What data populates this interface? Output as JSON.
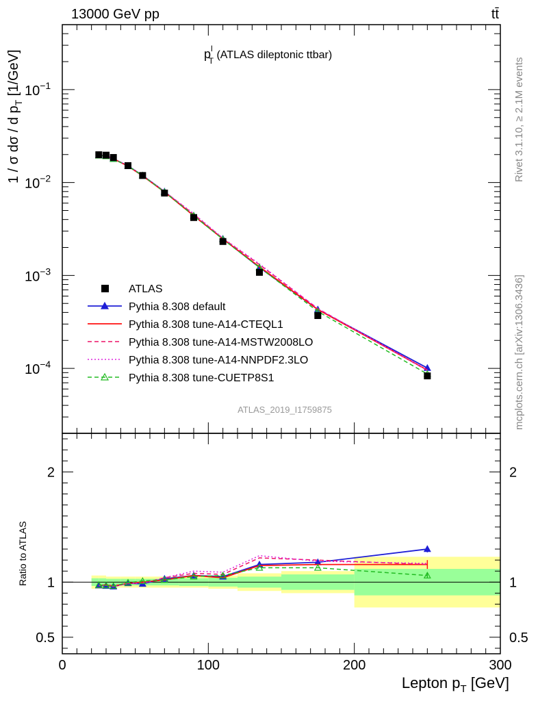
{
  "header": {
    "energy_label": "13000 GeV pp",
    "process_label": "tt̄",
    "side_rivet": "Rivet 3.1.10, ≥ 2.1M events",
    "side_mcplots": "mcplots.cern.ch [arXiv:1306.3436]",
    "analysis_id": "ATLAS_2019_I1759875"
  },
  "chart_data": [
    {
      "type": "line",
      "title_main": "p",
      "title_sup": "l",
      "title_sub": "T",
      "title_rest": " (ATLAS dileptonic ttbar)",
      "ylabel_prefix": "1 / σ  dσ / d p",
      "ylabel_sub": "T",
      "ylabel_unit": " [1/GeV]",
      "yscale": "log",
      "ylim": [
        2e-05,
        0.5
      ],
      "xlim": [
        0,
        300
      ],
      "ytick_labels": [
        {
          "value": 0.1,
          "base": "10",
          "exp": "−1"
        },
        {
          "value": 0.01,
          "base": "10",
          "exp": "−2"
        },
        {
          "value": 0.001,
          "base": "10",
          "exp": "−3"
        },
        {
          "value": 0.0001,
          "base": "10",
          "exp": "−4"
        }
      ],
      "x": [
        25,
        30,
        35,
        45,
        55,
        70,
        90,
        110,
        135,
        175,
        250
      ],
      "bin_edges": [
        20,
        25,
        30,
        40,
        50,
        60,
        80,
        100,
        120,
        150,
        200,
        300
      ],
      "legend_position": "middle-left",
      "data": {
        "name": "ATLAS",
        "values": [
          0.0199,
          0.0197,
          0.0186,
          0.0152,
          0.0119,
          0.0077,
          0.0042,
          0.00232,
          0.00108,
          0.00037,
          8.3e-05
        ]
      },
      "series": [
        {
          "name": "Pythia 8.308 default",
          "color": "#1f1fd6",
          "style": "solid",
          "marker": "triangle-filled",
          "values": [
            0.0197,
            0.0194,
            0.018,
            0.0151,
            0.0119,
            0.008,
            0.0044,
            0.00248,
            0.00122,
            0.00043,
            0.000101
          ]
        },
        {
          "name": "Pythia 8.308 tune-A14-CTEQL1",
          "color": "#ff1111",
          "style": "solid",
          "marker": "none",
          "values": [
            0.0196,
            0.0194,
            0.018,
            0.015,
            0.0118,
            0.0079,
            0.0044,
            0.00247,
            0.00124,
            0.00043,
            9.6e-05
          ]
        },
        {
          "name": "Pythia 8.308 tune-A14-MSTW2008LO",
          "color": "#ee1166",
          "style": "dashed",
          "marker": "none",
          "values": [
            0.0196,
            0.0193,
            0.018,
            0.015,
            0.0118,
            0.008,
            0.00455,
            0.0025,
            0.00131,
            0.00044,
            9.5e-05
          ]
        },
        {
          "name": "Pythia 8.308 tune-A14-NNPDF2.3LO",
          "color": "#dd22dd",
          "style": "dotted",
          "marker": "none",
          "values": [
            0.0196,
            0.0194,
            0.018,
            0.0151,
            0.0119,
            0.008,
            0.00462,
            0.00252,
            0.00133,
            0.00044,
            9.6e-05
          ]
        },
        {
          "name": "Pythia 8.308 tune-CUETP8S1",
          "color": "#22bb22",
          "style": "dashed",
          "marker": "triangle-open",
          "values": [
            0.0195,
            0.0192,
            0.0179,
            0.015,
            0.0119,
            0.0079,
            0.0044,
            0.00245,
            0.00122,
            0.00041,
            8.7e-05
          ]
        }
      ]
    },
    {
      "type": "line",
      "ylabel": "Ratio to ATLAS",
      "xlabel_prefix": "Lepton p",
      "xlabel_sub": "T",
      "xlabel_unit": " [GeV]",
      "xlim": [
        0,
        300
      ],
      "ylim": [
        0.35,
        2.35
      ],
      "xtick_labels": [
        {
          "value": 0,
          "label": "0"
        },
        {
          "value": 100,
          "label": "100"
        },
        {
          "value": 200,
          "label": "200"
        },
        {
          "value": 300,
          "label": "300"
        }
      ],
      "ytick_labels": [
        {
          "value": 0.5,
          "label": "0.5"
        },
        {
          "value": 1,
          "label": "1"
        },
        {
          "value": 2,
          "label": "2"
        }
      ],
      "bands": {
        "green_rel_err": [
          0.035,
          0.035,
          0.03,
          0.03,
          0.03,
          0.03,
          0.035,
          0.04,
          0.05,
          0.07,
          0.12
        ],
        "yellow_rel_err": [
          0.06,
          0.06,
          0.05,
          0.05,
          0.05,
          0.05,
          0.05,
          0.06,
          0.08,
          0.1,
          0.23
        ]
      },
      "series": [
        {
          "name": "Pythia 8.308 default",
          "values": [
            0.97,
            0.965,
            0.96,
            0.99,
            0.985,
            1.03,
            1.06,
            1.05,
            1.16,
            1.18,
            1.3
          ]
        },
        {
          "name": "Pythia 8.308 tune-A14-CTEQL1",
          "values": [
            0.97,
            0.975,
            0.965,
            0.99,
            1.0,
            1.02,
            1.06,
            1.04,
            1.15,
            1.16,
            1.16
          ]
        },
        {
          "name": "Pythia 8.308 tune-A14-MSTW2008LO",
          "values": [
            0.975,
            0.97,
            0.96,
            0.99,
            0.99,
            1.04,
            1.08,
            1.07,
            1.22,
            1.2,
            1.16
          ]
        },
        {
          "name": "Pythia 8.308 tune-A14-NNPDF2.3LO",
          "values": [
            0.97,
            0.97,
            0.96,
            0.99,
            0.99,
            1.04,
            1.1,
            1.09,
            1.24,
            1.19,
            1.17
          ]
        },
        {
          "name": "Pythia 8.308 tune-CUETP8S1",
          "values": [
            0.975,
            0.97,
            0.965,
            0.995,
            1.01,
            1.02,
            1.05,
            1.06,
            1.13,
            1.13,
            1.06
          ]
        }
      ]
    }
  ]
}
